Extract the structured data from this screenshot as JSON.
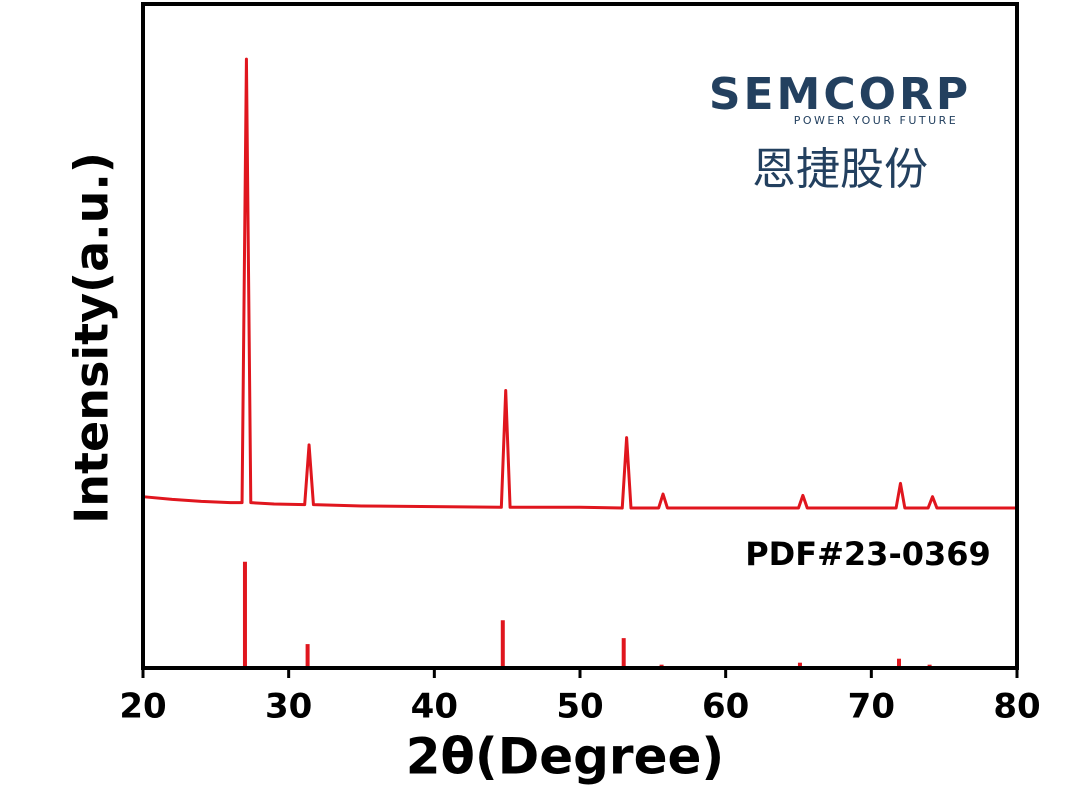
{
  "chart_data": {
    "type": "line",
    "x_label": "2θ(Degree)",
    "y_label": "Intensity(a.u.)",
    "x": [
      20,
      22,
      24,
      26,
      26.8,
      27.1,
      27.4,
      29,
      31.1,
      31.4,
      31.7,
      35,
      40,
      44.6,
      44.9,
      45.2,
      50,
      52.9,
      53.2,
      53.5,
      55.4,
      55.7,
      56.0,
      60,
      65.0,
      65.3,
      65.6,
      70,
      71.7,
      72.0,
      72.3,
      73.9,
      74.2,
      74.5,
      80
    ],
    "values": [
      25.8,
      25.4,
      25.1,
      24.9,
      24.9,
      91.7,
      24.9,
      24.7,
      24.6,
      33.6,
      24.6,
      24.4,
      24.3,
      24.2,
      41.8,
      24.2,
      24.2,
      24.1,
      34.7,
      24.1,
      24.1,
      26.2,
      24.1,
      24.1,
      24.1,
      26,
      24.1,
      24.1,
      24.1,
      27.8,
      24.1,
      24.1,
      25.8,
      24.1,
      24.1
    ],
    "color": "#e0161e",
    "reference": {
      "label": "PDF#23-0369",
      "x": [
        27.0,
        31.3,
        44.7,
        53.0,
        55.6,
        65.1,
        71.9,
        74.0
      ],
      "values": [
        16,
        3.6,
        7.2,
        4.5,
        0.5,
        0.8,
        1.4,
        0.5
      ],
      "color": "#e0161e"
    },
    "xlim": [
      20,
      80
    ],
    "xticks": [
      20,
      30,
      40,
      50,
      60,
      70,
      80
    ],
    "ylim": [
      0,
      100
    ]
  },
  "logo": {
    "brand": "SEMCORP",
    "slogan": "POWER YOUR FUTURE",
    "chinese_name": "恩捷股份"
  }
}
